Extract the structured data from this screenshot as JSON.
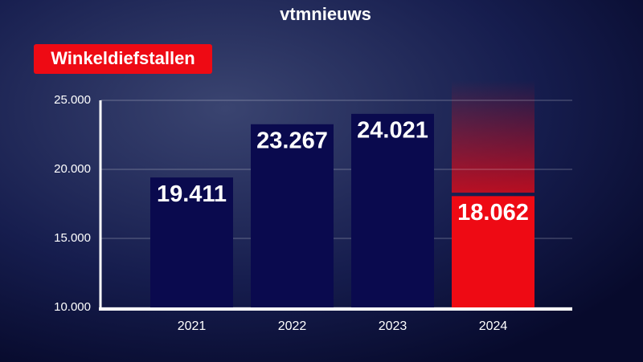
{
  "logo": "vtmnieuws",
  "chart_data": {
    "type": "bar",
    "title": "Winkeldiefstallen",
    "categories": [
      "2021",
      "2022",
      "2023",
      "2024"
    ],
    "values": [
      19411,
      23267,
      24021,
      18062
    ],
    "value_labels": [
      "19.411",
      "23.267",
      "24.021",
      "18.062"
    ],
    "colors": [
      "#0a0a4e",
      "#0a0a4e",
      "#0a0a4e",
      "#ee0a14"
    ],
    "ylim": [
      10000,
      25000
    ],
    "yticks": [
      {
        "value": 10000,
        "label": "10.000"
      },
      {
        "value": 15000,
        "label": "15.000"
      },
      {
        "value": 20000,
        "label": "20.000"
      },
      {
        "value": 25000,
        "label": "25.000"
      }
    ],
    "grid": true
  }
}
